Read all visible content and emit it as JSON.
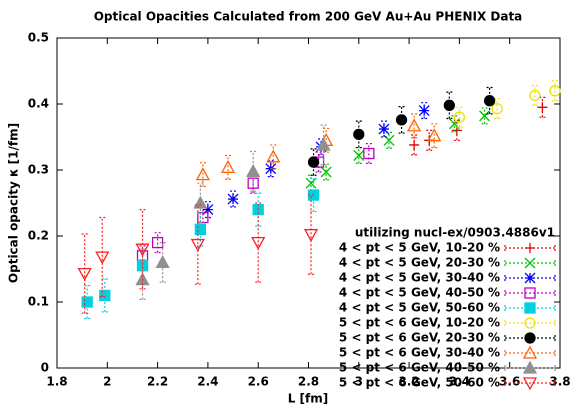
{
  "chart_data": {
    "type": "scatter",
    "title": "Optical Opacities Calculated from 200 GeV Au+Au PHENIX Data",
    "x_label": "L [fm]",
    "y_label": "Optical opacity κ [1/fm]",
    "legend_title": "utilizing nucl-ex/0903.4886v1",
    "legend": "lower right",
    "xlim": [
      1.8,
      3.8
    ],
    "ylim": [
      0,
      0.5
    ],
    "xticks": [
      1.8,
      2,
      2.2,
      2.4,
      2.6,
      2.8,
      3,
      3.2,
      3.4,
      3.6,
      3.8
    ],
    "yticks": [
      0,
      0.1,
      0.2,
      0.3,
      0.4,
      0.5
    ],
    "series": [
      {
        "name": "4 < pt < 5 GeV, 10-20 %",
        "color": "#e00000",
        "marker": "plus",
        "x": [
          3.22,
          3.28,
          3.39,
          3.73
        ],
        "values": [
          0.338,
          0.345,
          0.36,
          0.395
        ],
        "errors": [
          0.015,
          0.015,
          0.015,
          0.015
        ]
      },
      {
        "name": "4 < pt < 5 GeV, 20-30 %",
        "color": "#00c000",
        "marker": "cross",
        "x": [
          2.81,
          2.87,
          3.0,
          3.12,
          3.38,
          3.5
        ],
        "values": [
          0.28,
          0.297,
          0.322,
          0.345,
          0.37,
          0.382
        ],
        "errors": [
          0.012,
          0.012,
          0.012,
          0.012,
          0.012,
          0.012
        ]
      },
      {
        "name": "4 < pt < 5 GeV, 30-40 %",
        "color": "#0000ff",
        "marker": "star",
        "x": [
          2.4,
          2.5,
          2.65,
          2.85,
          3.1,
          3.26
        ],
        "values": [
          0.24,
          0.256,
          0.302,
          0.335,
          0.362,
          0.39
        ],
        "errors": [
          0.012,
          0.012,
          0.012,
          0.012,
          0.012,
          0.012
        ]
      },
      {
        "name": "4 < pt < 5 GeV, 40-50 %",
        "color": "#c000c0",
        "marker": "square-open",
        "x": [
          2.14,
          2.2,
          2.38,
          2.58,
          2.84,
          3.04
        ],
        "values": [
          0.17,
          0.19,
          0.228,
          0.28,
          0.312,
          0.325
        ],
        "errors": [
          0.015,
          0.015,
          0.015,
          0.015,
          0.015,
          0.015
        ]
      },
      {
        "name": "4 < pt < 5 GeV, 50-60 %",
        "color": "#00d0e0",
        "marker": "square-filled",
        "x": [
          1.92,
          1.99,
          2.14,
          2.37,
          2.6,
          2.82
        ],
        "values": [
          0.1,
          0.11,
          0.155,
          0.21,
          0.24,
          0.262
        ],
        "errors": [
          0.025,
          0.025,
          0.025,
          0.025,
          0.025,
          0.025
        ]
      },
      {
        "name": "5 < pt < 6 GeV, 10-20 %",
        "color": "#f0e000",
        "marker": "circle-open",
        "x": [
          3.4,
          3.55,
          3.7,
          3.78
        ],
        "values": [
          0.38,
          0.393,
          0.413,
          0.42
        ],
        "errors": [
          0.015,
          0.015,
          0.015,
          0.015
        ]
      },
      {
        "name": "5 < pt < 6 GeV, 20-30 %",
        "color": "#000000",
        "marker": "circle-filled",
        "x": [
          2.82,
          3.0,
          3.17,
          3.36,
          3.52
        ],
        "values": [
          0.312,
          0.354,
          0.376,
          0.398,
          0.405
        ],
        "errors": [
          0.02,
          0.02,
          0.02,
          0.02,
          0.02
        ]
      },
      {
        "name": "5 < pt < 6 GeV, 30-40 %",
        "color": "#ff6000",
        "marker": "triangle-open",
        "x": [
          2.38,
          2.48,
          2.66,
          2.87,
          3.22,
          3.3
        ],
        "values": [
          0.293,
          0.304,
          0.32,
          0.345,
          0.367,
          0.352
        ],
        "errors": [
          0.018,
          0.018,
          0.018,
          0.018,
          0.018,
          0.018
        ]
      },
      {
        "name": "5 < pt < 6 GeV, 40-50 %",
        "color": "#909090",
        "marker": "triangle-filled",
        "x": [
          2.14,
          2.22,
          2.37,
          2.58,
          2.86
        ],
        "values": [
          0.134,
          0.16,
          0.25,
          0.298,
          0.338
        ],
        "errors": [
          0.03,
          0.03,
          0.03,
          0.03,
          0.03
        ]
      },
      {
        "name": "5 < pt < 6 GeV, 50-60 %",
        "color": "#ff2020",
        "marker": "triangle-down-open",
        "x": [
          1.91,
          1.98,
          2.14,
          2.36,
          2.6,
          2.81
        ],
        "values": [
          0.143,
          0.168,
          0.18,
          0.187,
          0.19,
          0.202
        ],
        "errors": [
          0.06,
          0.06,
          0.06,
          0.06,
          0.06,
          0.06
        ]
      }
    ]
  }
}
